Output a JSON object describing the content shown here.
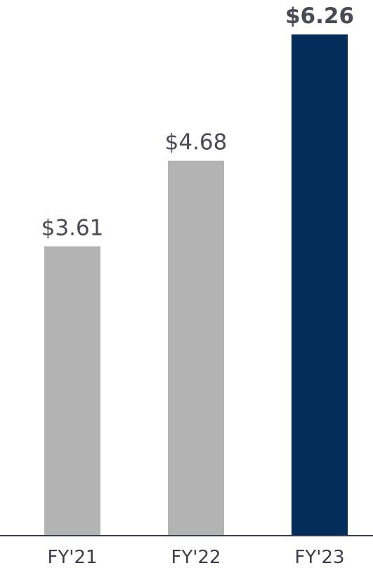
{
  "chart_data": {
    "type": "bar",
    "categories": [
      "FY'21",
      "FY'22",
      "FY'23"
    ],
    "values": [
      3.61,
      4.68,
      6.26
    ],
    "value_labels": [
      "$3.61",
      "$4.68",
      "$6.26"
    ],
    "colors": [
      "#b3b3b3",
      "#b3b3b3",
      "#032d5a"
    ]
  }
}
